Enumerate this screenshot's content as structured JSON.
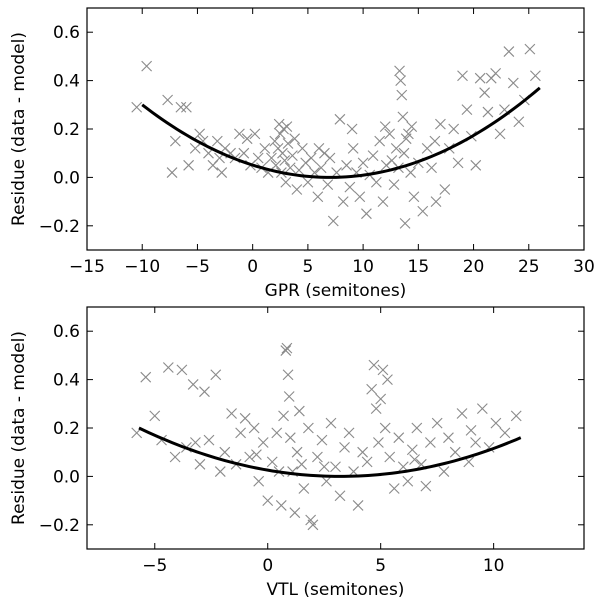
{
  "chart_data": [
    {
      "type": "scatter",
      "xlabel": "GPR (semitones)",
      "ylabel": "Residue (data - model)",
      "xlim": [
        -15,
        30
      ],
      "ylim": [
        -0.3,
        0.7
      ],
      "xticks": [
        -15,
        -10,
        -5,
        0,
        5,
        10,
        15,
        20,
        25,
        30
      ],
      "yticks": [
        -0.2,
        0.0,
        0.2,
        0.4,
        0.6
      ],
      "xtick_labels": [
        "−15",
        "−10",
        "−5",
        "0",
        "5",
        "10",
        "15",
        "20",
        "25",
        "30"
      ],
      "ytick_labels": [
        "−0.2",
        "0.0",
        "0.2",
        "0.4",
        "0.6"
      ],
      "grid": false,
      "scatter_color": "#8a8a8a",
      "fit_color": "#000000",
      "fit": {
        "type": "quadratic",
        "vertex_x": 7.0,
        "vertex_y": 0.0,
        "x_start": -10,
        "x_end": 26,
        "y_start": 0.3,
        "y_end": 0.37
      },
      "points": [
        [
          -10.5,
          0.29
        ],
        [
          -9.6,
          0.46
        ],
        [
          -7.7,
          0.32
        ],
        [
          -7.3,
          0.02
        ],
        [
          -7.0,
          0.15
        ],
        [
          -6.5,
          0.29
        ],
        [
          -6.0,
          0.29
        ],
        [
          -5.8,
          0.05
        ],
        [
          -5.2,
          0.12
        ],
        [
          -4.8,
          0.18
        ],
        [
          -4.5,
          0.15
        ],
        [
          -4.0,
          0.1
        ],
        [
          -3.6,
          0.05
        ],
        [
          -3.2,
          0.15
        ],
        [
          -3.0,
          0.08
        ],
        [
          -2.8,
          0.02
        ],
        [
          -2.5,
          0.12
        ],
        [
          -2.0,
          0.1
        ],
        [
          -1.6,
          0.08
        ],
        [
          -1.2,
          0.18
        ],
        [
          -0.8,
          0.1
        ],
        [
          -0.5,
          0.16
        ],
        [
          -0.2,
          0.05
        ],
        [
          0.2,
          0.18
        ],
        [
          0.5,
          0.08
        ],
        [
          0.8,
          0.04
        ],
        [
          1.1,
          0.12
        ],
        [
          1.4,
          0.02
        ],
        [
          1.7,
          0.08
        ],
        [
          2.0,
          0.15
        ],
        [
          2.1,
          0.05
        ],
        [
          2.3,
          0.12
        ],
        [
          2.4,
          0.22
        ],
        [
          2.5,
          0.18
        ],
        [
          2.6,
          0.02
        ],
        [
          2.7,
          0.1
        ],
        [
          2.8,
          0.2
        ],
        [
          2.9,
          0.07
        ],
        [
          3.0,
          -0.02
        ],
        [
          3.2,
          0.14
        ],
        [
          3.4,
          0.04
        ],
        [
          3.6,
          0.09
        ],
        [
          3.8,
          0.16
        ],
        [
          4.0,
          -0.05
        ],
        [
          4.2,
          0.03
        ],
        [
          4.5,
          0.12
        ],
        [
          4.8,
          0.06
        ],
        [
          5.0,
          -0.02
        ],
        [
          5.3,
          0.08
        ],
        [
          5.6,
          0.02
        ],
        [
          5.9,
          -0.08
        ],
        [
          6.2,
          0.04
        ],
        [
          6.5,
          0.1
        ],
        [
          6.8,
          -0.03
        ],
        [
          7.0,
          0.08
        ],
        [
          7.3,
          -0.18
        ],
        [
          7.6,
          0.02
        ],
        [
          7.9,
          0.24
        ],
        [
          8.2,
          -0.1
        ],
        [
          8.5,
          0.05
        ],
        [
          8.8,
          -0.04
        ],
        [
          9.1,
          0.12
        ],
        [
          9.4,
          0.02
        ],
        [
          9.7,
          -0.08
        ],
        [
          10.0,
          0.06
        ],
        [
          10.3,
          -0.15
        ],
        [
          10.6,
          0.01
        ],
        [
          10.9,
          0.09
        ],
        [
          11.2,
          -0.02
        ],
        [
          11.5,
          0.15
        ],
        [
          11.8,
          -0.1
        ],
        [
          12.1,
          0.05
        ],
        [
          12.4,
          0.18
        ],
        [
          12.6,
          0.07
        ],
        [
          12.8,
          -0.03
        ],
        [
          13.0,
          0.12
        ],
        [
          13.2,
          0.04
        ],
        [
          13.3,
          0.44
        ],
        [
          13.4,
          0.4
        ],
        [
          13.5,
          0.34
        ],
        [
          13.6,
          0.25
        ],
        [
          13.7,
          0.1
        ],
        [
          13.8,
          -0.19
        ],
        [
          13.9,
          0.16
        ],
        [
          14.1,
          0.18
        ],
        [
          14.3,
          0.02
        ],
        [
          14.6,
          -0.08
        ],
        [
          15.0,
          0.06
        ],
        [
          15.4,
          -0.14
        ],
        [
          15.8,
          0.12
        ],
        [
          16.2,
          0.04
        ],
        [
          16.6,
          -0.1
        ],
        [
          17.0,
          0.22
        ],
        [
          17.4,
          -0.05
        ],
        [
          17.8,
          0.12
        ],
        [
          18.2,
          0.2
        ],
        [
          18.6,
          0.06
        ],
        [
          19.0,
          0.42
        ],
        [
          19.4,
          0.28
        ],
        [
          19.8,
          0.17
        ],
        [
          20.2,
          0.05
        ],
        [
          20.6,
          0.41
        ],
        [
          21.0,
          0.35
        ],
        [
          21.3,
          0.27
        ],
        [
          21.6,
          0.41
        ],
        [
          22.0,
          0.43
        ],
        [
          22.4,
          0.18
        ],
        [
          22.8,
          0.28
        ],
        [
          23.2,
          0.52
        ],
        [
          23.6,
          0.39
        ],
        [
          24.1,
          0.23
        ],
        [
          24.6,
          0.32
        ],
        [
          25.1,
          0.53
        ],
        [
          25.6,
          0.42
        ],
        [
          3.1,
          0.21
        ],
        [
          6.0,
          0.12
        ],
        [
          9.0,
          0.2
        ],
        [
          12.0,
          0.21
        ],
        [
          14.4,
          0.21
        ],
        [
          16.5,
          0.15
        ]
      ]
    },
    {
      "type": "scatter",
      "xlabel": "VTL (semitones)",
      "ylabel": "Residue (data - model)",
      "xlim": [
        -8,
        14
      ],
      "ylim": [
        -0.3,
        0.7
      ],
      "xticks": [
        -5,
        0,
        5,
        10
      ],
      "yticks": [
        -0.2,
        0.0,
        0.2,
        0.4,
        0.6
      ],
      "xtick_labels": [
        "−5",
        "0",
        "5",
        "10"
      ],
      "ytick_labels": [
        "−0.2",
        "0.0",
        "0.2",
        "0.4",
        "0.6"
      ],
      "grid": false,
      "scatter_color": "#8a8a8a",
      "fit_color": "#000000",
      "fit": {
        "type": "quadratic",
        "vertex_x": 3.2,
        "vertex_y": 0.0,
        "x_start": -5.7,
        "x_end": 11.2,
        "y_start": 0.2,
        "y_end": 0.16
      },
      "points": [
        [
          -5.8,
          0.18
        ],
        [
          -5.4,
          0.41
        ],
        [
          -5.0,
          0.25
        ],
        [
          -4.7,
          0.15
        ],
        [
          -4.4,
          0.45
        ],
        [
          -4.1,
          0.08
        ],
        [
          -3.8,
          0.44
        ],
        [
          -3.6,
          0.12
        ],
        [
          -3.3,
          0.38
        ],
        [
          -3.0,
          0.05
        ],
        [
          -2.8,
          0.35
        ],
        [
          -2.6,
          0.15
        ],
        [
          -2.3,
          0.42
        ],
        [
          -2.1,
          0.02
        ],
        [
          -1.9,
          0.1
        ],
        [
          -1.6,
          0.26
        ],
        [
          -1.4,
          0.05
        ],
        [
          -1.2,
          0.18
        ],
        [
          -1.0,
          0.24
        ],
        [
          -0.8,
          0.08
        ],
        [
          -0.6,
          0.2
        ],
        [
          -0.4,
          -0.02
        ],
        [
          -0.2,
          0.14
        ],
        [
          0.0,
          -0.1
        ],
        [
          0.2,
          0.06
        ],
        [
          0.4,
          0.18
        ],
        [
          0.5,
          0.02
        ],
        [
          0.6,
          -0.12
        ],
        [
          0.7,
          0.25
        ],
        [
          0.8,
          0.52
        ],
        [
          0.85,
          0.53
        ],
        [
          0.9,
          0.42
        ],
        [
          0.95,
          0.33
        ],
        [
          1.0,
          0.16
        ],
        [
          1.1,
          0.02
        ],
        [
          1.2,
          -0.15
        ],
        [
          1.3,
          0.1
        ],
        [
          1.4,
          0.27
        ],
        [
          1.5,
          0.05
        ],
        [
          1.6,
          -0.05
        ],
        [
          1.8,
          0.2
        ],
        [
          1.9,
          -0.18
        ],
        [
          2.0,
          -0.2
        ],
        [
          2.2,
          0.08
        ],
        [
          2.4,
          0.15
        ],
        [
          2.6,
          -0.02
        ],
        [
          2.8,
          0.22
        ],
        [
          3.0,
          0.04
        ],
        [
          3.2,
          -0.08
        ],
        [
          3.4,
          0.12
        ],
        [
          3.6,
          0.18
        ],
        [
          3.8,
          0.02
        ],
        [
          4.0,
          -0.12
        ],
        [
          4.2,
          0.1
        ],
        [
          4.4,
          0.06
        ],
        [
          4.6,
          0.36
        ],
        [
          4.7,
          0.46
        ],
        [
          4.8,
          0.28
        ],
        [
          4.9,
          0.14
        ],
        [
          5.0,
          0.32
        ],
        [
          5.1,
          0.44
        ],
        [
          5.2,
          0.2
        ],
        [
          5.3,
          0.4
        ],
        [
          5.4,
          0.08
        ],
        [
          5.6,
          -0.05
        ],
        [
          5.8,
          0.16
        ],
        [
          6.0,
          0.04
        ],
        [
          6.2,
          -0.02
        ],
        [
          6.4,
          0.11
        ],
        [
          6.6,
          0.2
        ],
        [
          6.8,
          0.05
        ],
        [
          7.0,
          -0.04
        ],
        [
          7.2,
          0.14
        ],
        [
          7.5,
          0.22
        ],
        [
          7.8,
          0.02
        ],
        [
          8.0,
          0.16
        ],
        [
          8.3,
          0.1
        ],
        [
          8.6,
          0.26
        ],
        [
          8.9,
          0.06
        ],
        [
          9.2,
          0.14
        ],
        [
          9.5,
          0.28
        ],
        [
          9.8,
          0.12
        ],
        [
          10.1,
          0.22
        ],
        [
          10.5,
          0.18
        ],
        [
          11.0,
          0.25
        ],
        [
          -3.2,
          0.14
        ],
        [
          -0.5,
          0.09
        ],
        [
          2.5,
          0.04
        ],
        [
          6.5,
          0.07
        ],
        [
          9.0,
          0.19
        ]
      ]
    }
  ]
}
